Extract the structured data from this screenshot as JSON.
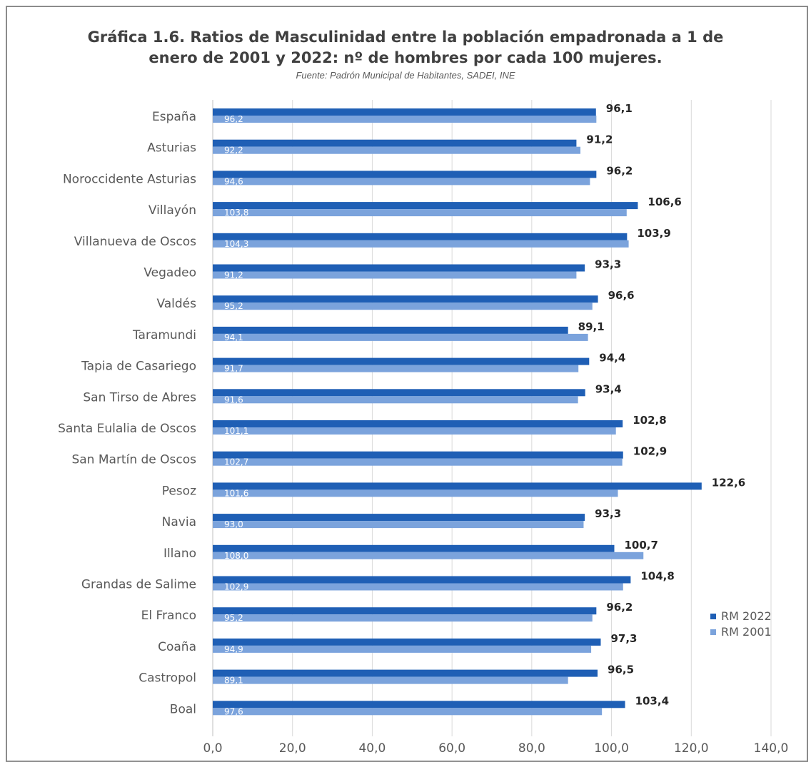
{
  "title_line1": "Gráfica 1.6. Ratios de Masculinidad entre la población empadronada a 1 de",
  "title_line2": "enero de 2001 y 2022: nº de hombres por cada 100 mujeres.",
  "source": "Fuente: Padrón Municipal de Habitantes, SADEI, INE",
  "chart_data": {
    "type": "bar",
    "orientation": "horizontal",
    "categories": [
      "España",
      "Asturias",
      "Noroccidente Asturias",
      "Villayón",
      "Villanueva de Oscos",
      "Vegadeo",
      "Valdés",
      "Taramundi",
      "Tapia de Casariego",
      "San Tirso de Abres",
      "Santa Eulalia de Oscos",
      "San Martín de Oscos",
      "Pesoz",
      "Navia",
      "Illano",
      "Grandas de Salime",
      "El Franco",
      "Coaña",
      "Castropol",
      "Boal"
    ],
    "series": [
      {
        "name": "RM 2022",
        "color": "#1f5fb5",
        "values": [
          96.1,
          91.2,
          96.2,
          106.6,
          103.9,
          93.3,
          96.6,
          89.1,
          94.4,
          93.4,
          102.8,
          102.9,
          122.6,
          93.3,
          100.7,
          104.8,
          96.2,
          97.3,
          96.5,
          103.4
        ],
        "labels": [
          "96,1",
          "91,2",
          "96,2",
          "106,6",
          "103,9",
          "93,3",
          "96,6",
          "89,1",
          "94,4",
          "93,4",
          "102,8",
          "102,9",
          "122,6",
          "93,3",
          "100,7",
          "104,8",
          "96,2",
          "97,3",
          "96,5",
          "103,4"
        ]
      },
      {
        "name": "RM 2001",
        "color": "#7ba3dc",
        "values": [
          96.2,
          92.2,
          94.6,
          103.8,
          104.3,
          91.2,
          95.2,
          94.1,
          91.7,
          91.6,
          101.1,
          102.7,
          101.6,
          93.0,
          108.0,
          102.9,
          95.2,
          94.9,
          89.1,
          97.6
        ],
        "labels": [
          "96,2",
          "92,2",
          "94,6",
          "103,8",
          "104,3",
          "91,2",
          "95,2",
          "94,1",
          "91,7",
          "91,6",
          "101,1",
          "102,7",
          "101,6",
          "93,0",
          "108,0",
          "102,9",
          "95,2",
          "94,9",
          "89,1",
          "97,6"
        ]
      }
    ],
    "xlim": [
      0,
      140
    ],
    "xticks": [
      "0,0",
      "20,0",
      "40,0",
      "60,0",
      "80,0",
      "100,0",
      "120,0",
      "140,0"
    ],
    "grid": true,
    "legend_position": "right"
  }
}
